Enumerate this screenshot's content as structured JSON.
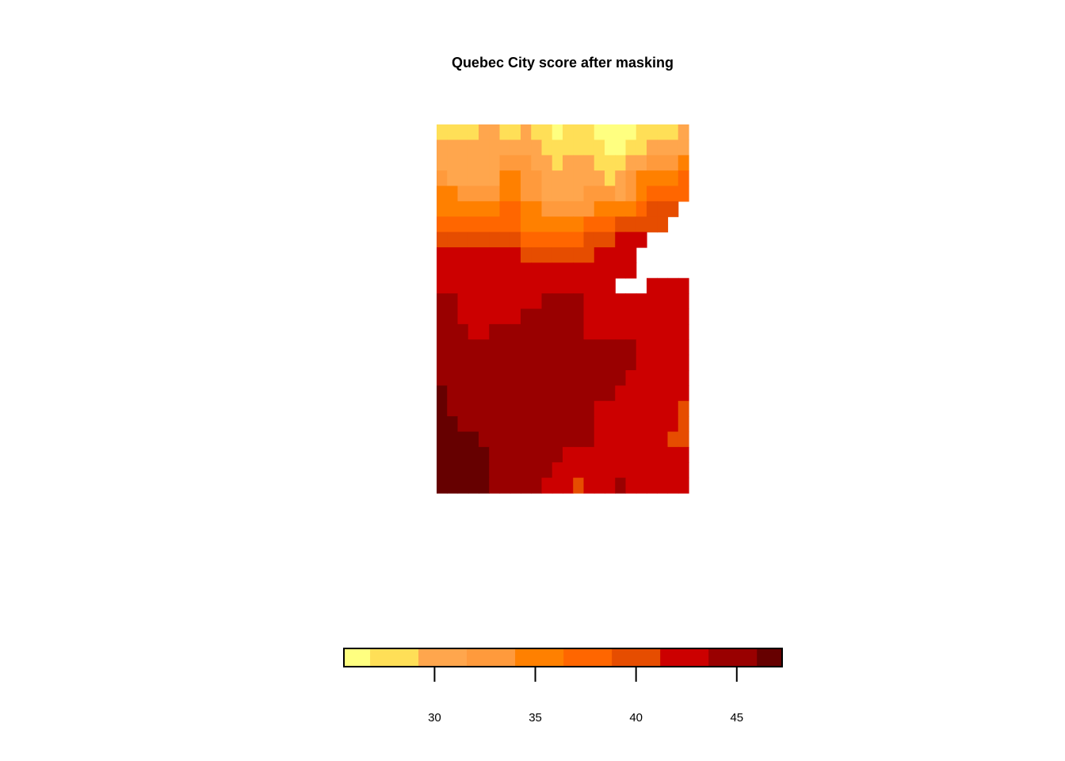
{
  "chart_data": {
    "type": "heatmap",
    "title": "Quebec City score after masking",
    "xlabel": "",
    "ylabel": "",
    "legend": {
      "placement": "bottom",
      "orientation": "horizontal",
      "range": [
        25.5,
        47.25
      ],
      "breaks": [
        25.5,
        26.8,
        29.2,
        31.6,
        34.0,
        36.4,
        38.8,
        41.2,
        43.6,
        46.0,
        47.25
      ],
      "colors": [
        "#FFFF80",
        "#FFDF57",
        "#FFA64D",
        "#FF9A3C",
        "#FF8000",
        "#FF6600",
        "#E64D00",
        "#CC0000",
        "#990000",
        "#660000"
      ],
      "ticks": [
        {
          "value": 30,
          "label": "30"
        },
        {
          "value": 35,
          "label": "35"
        },
        {
          "value": 40,
          "label": "40"
        },
        {
          "value": 45,
          "label": "45"
        }
      ]
    },
    "grid": {
      "ncols": 24,
      "nrows": 24,
      "na_value": -1,
      "rows": [
        [
          1,
          1,
          1,
          1,
          2,
          2,
          1,
          1,
          2,
          1,
          1,
          0,
          1,
          1,
          1,
          0,
          0,
          0,
          0,
          1,
          1,
          1,
          1,
          2
        ],
        [
          2,
          2,
          2,
          2,
          2,
          2,
          2,
          2,
          2,
          2,
          1,
          1,
          1,
          1,
          1,
          1,
          0,
          0,
          1,
          1,
          2,
          2,
          2,
          2
        ],
        [
          2,
          2,
          2,
          2,
          2,
          2,
          3,
          3,
          3,
          2,
          2,
          1,
          2,
          2,
          2,
          1,
          1,
          1,
          2,
          2,
          3,
          3,
          3,
          4
        ],
        [
          3,
          2,
          2,
          2,
          2,
          2,
          4,
          4,
          3,
          3,
          2,
          2,
          2,
          2,
          2,
          2,
          1,
          2,
          3,
          4,
          4,
          4,
          4,
          5
        ],
        [
          4,
          4,
          3,
          3,
          3,
          3,
          4,
          4,
          3,
          3,
          2,
          2,
          2,
          2,
          3,
          3,
          3,
          2,
          3,
          4,
          5,
          5,
          5,
          5
        ],
        [
          4,
          4,
          4,
          4,
          4,
          4,
          5,
          5,
          4,
          4,
          3,
          3,
          3,
          3,
          3,
          4,
          4,
          4,
          4,
          5,
          6,
          6,
          6,
          -1
        ],
        [
          5,
          5,
          5,
          5,
          5,
          5,
          5,
          5,
          4,
          4,
          4,
          4,
          4,
          4,
          5,
          5,
          5,
          6,
          6,
          6,
          6,
          6,
          -1,
          -1
        ],
        [
          6,
          6,
          6,
          6,
          6,
          6,
          6,
          6,
          5,
          5,
          5,
          5,
          5,
          5,
          6,
          6,
          6,
          7,
          7,
          7,
          -1,
          -1,
          -1,
          -1
        ],
        [
          7,
          7,
          7,
          7,
          7,
          7,
          7,
          7,
          6,
          6,
          6,
          6,
          6,
          6,
          6,
          7,
          7,
          7,
          7,
          -1,
          -1,
          -1,
          -1,
          -1
        ],
        [
          7,
          7,
          7,
          7,
          7,
          7,
          7,
          7,
          7,
          7,
          7,
          7,
          7,
          7,
          7,
          7,
          7,
          7,
          7,
          -1,
          -1,
          -1,
          -1,
          -1
        ],
        [
          7,
          7,
          7,
          7,
          7,
          7,
          7,
          7,
          7,
          7,
          7,
          7,
          7,
          7,
          7,
          7,
          7,
          -1,
          -1,
          -1,
          7,
          7,
          7,
          7
        ],
        [
          8,
          8,
          7,
          7,
          7,
          7,
          7,
          7,
          7,
          7,
          8,
          8,
          8,
          8,
          7,
          7,
          7,
          7,
          7,
          7,
          7,
          7,
          7,
          7
        ],
        [
          8,
          8,
          7,
          7,
          7,
          7,
          7,
          7,
          8,
          8,
          8,
          8,
          8,
          8,
          7,
          7,
          7,
          7,
          7,
          7,
          7,
          7,
          7,
          7
        ],
        [
          8,
          8,
          8,
          7,
          7,
          8,
          8,
          8,
          8,
          8,
          8,
          8,
          8,
          8,
          7,
          7,
          7,
          7,
          7,
          7,
          7,
          7,
          7,
          7
        ],
        [
          8,
          8,
          8,
          8,
          8,
          8,
          8,
          8,
          8,
          8,
          8,
          8,
          8,
          8,
          8,
          8,
          8,
          8,
          8,
          7,
          7,
          7,
          7,
          7
        ],
        [
          8,
          8,
          8,
          8,
          8,
          8,
          8,
          8,
          8,
          8,
          8,
          8,
          8,
          8,
          8,
          8,
          8,
          8,
          8,
          7,
          7,
          7,
          7,
          7
        ],
        [
          8,
          8,
          8,
          8,
          8,
          8,
          8,
          8,
          8,
          8,
          8,
          8,
          8,
          8,
          8,
          8,
          8,
          8,
          7,
          7,
          7,
          7,
          7,
          7
        ],
        [
          9,
          8,
          8,
          8,
          8,
          8,
          8,
          8,
          8,
          8,
          8,
          8,
          8,
          8,
          8,
          8,
          8,
          7,
          7,
          7,
          7,
          7,
          7,
          7
        ],
        [
          9,
          8,
          8,
          8,
          8,
          8,
          8,
          8,
          8,
          8,
          8,
          8,
          8,
          8,
          8,
          7,
          7,
          7,
          7,
          7,
          7,
          7,
          7,
          6
        ],
        [
          9,
          9,
          8,
          8,
          8,
          8,
          8,
          8,
          8,
          8,
          8,
          8,
          8,
          8,
          8,
          7,
          7,
          7,
          7,
          7,
          7,
          7,
          7,
          6
        ],
        [
          9,
          9,
          9,
          9,
          8,
          8,
          8,
          8,
          8,
          8,
          8,
          8,
          8,
          8,
          8,
          7,
          7,
          7,
          7,
          7,
          7,
          7,
          6,
          6
        ],
        [
          9,
          9,
          9,
          9,
          9,
          8,
          8,
          8,
          8,
          8,
          8,
          8,
          7,
          7,
          7,
          7,
          7,
          7,
          7,
          7,
          7,
          7,
          7,
          7
        ],
        [
          9,
          9,
          9,
          9,
          9,
          8,
          8,
          8,
          8,
          8,
          8,
          7,
          7,
          7,
          7,
          7,
          7,
          7,
          7,
          7,
          7,
          7,
          7,
          7
        ],
        [
          9,
          9,
          9,
          9,
          9,
          8,
          8,
          8,
          8,
          8,
          7,
          7,
          7,
          6,
          7,
          7,
          7,
          8,
          7,
          7,
          7,
          7,
          7,
          7
        ]
      ]
    }
  }
}
